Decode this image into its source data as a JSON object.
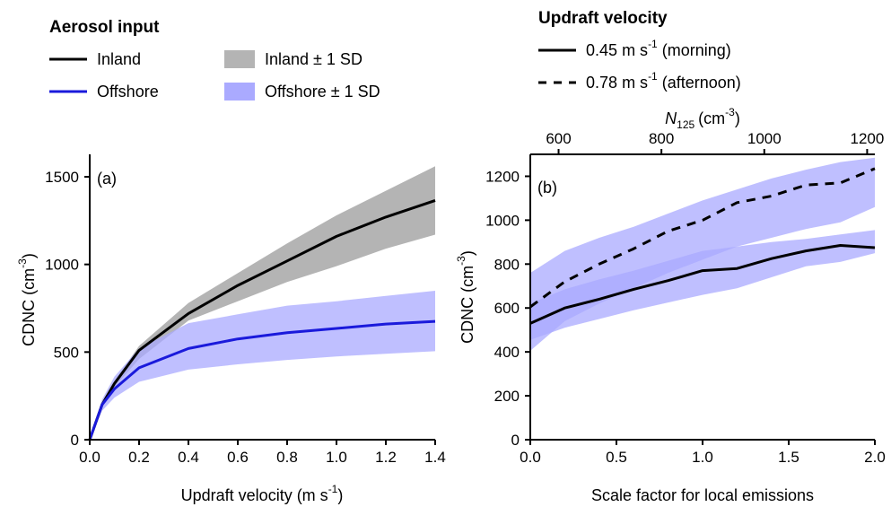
{
  "legend_aerosol": {
    "title": "Aerosol input",
    "inland": "Inland",
    "offshore": "Offshore",
    "inland_sd": "Inland ± 1 SD",
    "offshore_sd": "Offshore ± 1 SD"
  },
  "legend_updraft": {
    "title": "Updraft velocity",
    "morning_value": "0.45",
    "morning_unit": "m s",
    "morning_sup": "-1",
    "morning_note": "(morning)",
    "afternoon_value": "0.78",
    "afternoon_unit": "m s",
    "afternoon_sup": "-1",
    "afternoon_note": "(afternoon)"
  },
  "colors": {
    "inland": "#000000",
    "offshore": "#1a1adb",
    "inland_band": "#b4b4b4",
    "offshore_band": "#aaaaff",
    "overlap_band": "#7b7bd6"
  },
  "chart_data": [
    {
      "type": "line",
      "panel_label": "(a)",
      "xlabel": "Updraft velocity (m s",
      "xlabel_sup": "-1",
      "xlabel_end": ")",
      "ylabel": "CDNC (cm",
      "ylabel_sup": "-3",
      "ylabel_end": ")",
      "xlim": [
        0,
        1.4
      ],
      "ylim": [
        0,
        1500
      ],
      "xticks": [
        "0.0",
        "0.2",
        "0.4",
        "0.6",
        "0.8",
        "1.0",
        "1.2",
        "1.4"
      ],
      "yticks": [
        "0",
        "500",
        "1000",
        "1500"
      ],
      "x": [
        0,
        0.05,
        0.1,
        0.2,
        0.4,
        0.6,
        0.8,
        1.0,
        1.2,
        1.4
      ],
      "series": [
        {
          "name": "Inland",
          "values": [
            0,
            200,
            320,
            510,
            720,
            880,
            1020,
            1160,
            1270,
            1365
          ],
          "sd_lower": [
            0,
            190,
            300,
            460,
            680,
            790,
            900,
            990,
            1090,
            1170
          ],
          "sd_upper": [
            0,
            215,
            335,
            535,
            780,
            950,
            1120,
            1280,
            1420,
            1560
          ]
        },
        {
          "name": "Offshore",
          "values": [
            0,
            200,
            290,
            410,
            520,
            575,
            610,
            635,
            660,
            675
          ],
          "sd_lower": [
            0,
            165,
            240,
            330,
            400,
            430,
            455,
            475,
            490,
            505
          ],
          "sd_upper": [
            0,
            230,
            360,
            520,
            665,
            715,
            765,
            790,
            820,
            850
          ]
        }
      ]
    },
    {
      "type": "line",
      "panel_label": "(b)",
      "xlabel": "Scale factor for local emissions",
      "ylabel": "CDNC (cm",
      "ylabel_sup": "-3",
      "ylabel_end": ")",
      "top_axis_label": "N",
      "top_axis_sub": "125",
      "top_axis_unit": "(cm",
      "top_axis_sup": "-3",
      "top_axis_end": ")",
      "xlim": [
        0,
        2
      ],
      "ylim": [
        0,
        1300
      ],
      "top_xlim": [
        545,
        1215
      ],
      "xticks": [
        "0.0",
        "0.5",
        "1.0",
        "1.5",
        "2.0"
      ],
      "yticks": [
        "0",
        "200",
        "400",
        "600",
        "800",
        "1000",
        "1200"
      ],
      "top_xticks": [
        "600",
        "800",
        "1000",
        "1200"
      ],
      "x": [
        0,
        0.2,
        0.4,
        0.6,
        0.8,
        1.0,
        1.2,
        1.4,
        1.6,
        1.8,
        2.0
      ],
      "series": [
        {
          "name": "0.45 m s-1 (morning)",
          "values": [
            530,
            600,
            640,
            685,
            725,
            770,
            780,
            825,
            860,
            885,
            875
          ],
          "sd_lower": [
            455,
            510,
            550,
            590,
            625,
            660,
            690,
            740,
            790,
            810,
            850
          ],
          "sd_upper": [
            620,
            685,
            730,
            770,
            815,
            860,
            880,
            900,
            915,
            935,
            955
          ]
        },
        {
          "name": "0.78 m s-1 (afternoon)",
          "values": [
            605,
            720,
            800,
            870,
            950,
            1000,
            1080,
            1110,
            1160,
            1170,
            1235
          ],
          "sd_lower": [
            405,
            540,
            620,
            690,
            760,
            820,
            880,
            920,
            960,
            990,
            1060
          ],
          "sd_upper": [
            760,
            860,
            920,
            970,
            1030,
            1090,
            1140,
            1190,
            1230,
            1265,
            1285
          ]
        }
      ]
    }
  ]
}
